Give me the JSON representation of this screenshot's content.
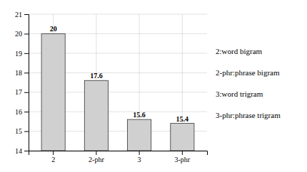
{
  "chart_data": {
    "type": "bar",
    "categories": [
      "2",
      "2-phr",
      "3",
      "3-phr"
    ],
    "values": [
      20.0,
      17.6,
      15.6,
      15.4
    ],
    "value_labels": [
      "20",
      "17.6",
      "15.6",
      "15.4"
    ],
    "data_labels": true,
    "color": "#d0d0d0",
    "ylim": [
      14,
      21
    ],
    "yticks": [
      14,
      15,
      16,
      17,
      18,
      19,
      20,
      21
    ],
    "grid": true,
    "annotations": [
      "2:word bigram",
      "2-phr:phrase bigram",
      "3:word trigram",
      "3-phr:phrase trigram"
    ]
  }
}
